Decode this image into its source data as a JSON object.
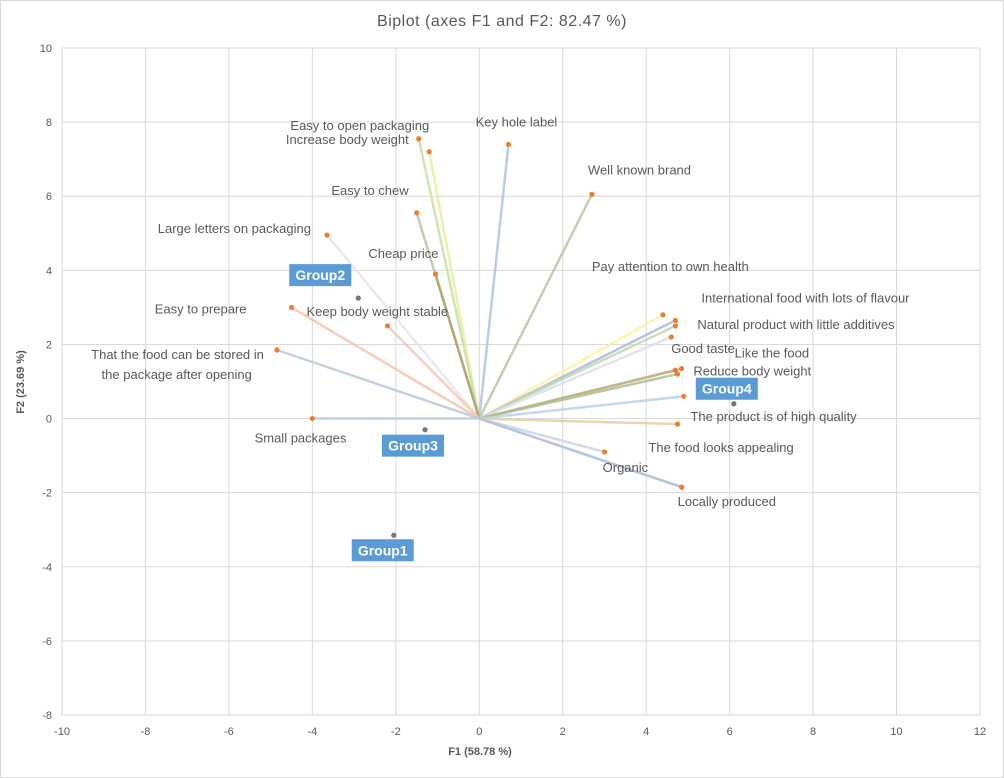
{
  "chart_data": {
    "type": "scatter",
    "title": "Biplot (axes F1 and F2: 82.47 %)",
    "xlabel": "F1 (58.78 %)",
    "ylabel": "F2 (23.69 %)",
    "xlim": [
      -10,
      12
    ],
    "ylim": [
      -8,
      10
    ],
    "xticks": [
      -10,
      -8,
      -6,
      -4,
      -2,
      0,
      2,
      4,
      6,
      8,
      10,
      12
    ],
    "yticks": [
      -8,
      -6,
      -4,
      -2,
      0,
      2,
      4,
      6,
      8,
      10
    ],
    "grid": true,
    "variables": [
      {
        "name": "Easy to open packaging",
        "x": -1.2,
        "y": 7.2,
        "color": "#e6ee9c"
      },
      {
        "name": "Increase body weight",
        "x": -1.45,
        "y": 7.55,
        "color": "#c5e1a5"
      },
      {
        "name": "Key hole label",
        "x": 0.7,
        "y": 7.4,
        "color": "#b0c4de"
      },
      {
        "name": "Well known brand",
        "x": 2.7,
        "y": 6.05,
        "color": "#b5c9a5"
      },
      {
        "name": "Easy to chew",
        "x": -1.5,
        "y": 5.55,
        "color": "#b8c4a0"
      },
      {
        "name": "Large letters on packaging",
        "x": -3.65,
        "y": 4.95,
        "color": "#e4e6ea"
      },
      {
        "name": "Cheap price",
        "x": -1.05,
        "y": 3.9,
        "color": "#b0a070"
      },
      {
        "name": "Easy to prepare",
        "x": -4.5,
        "y": 3.0,
        "color": "#f4c4a8"
      },
      {
        "name": "Keep body weight stable",
        "x": -2.2,
        "y": 2.5,
        "color": "#f0c8b0"
      },
      {
        "name": "That the food can be stored in the package after opening",
        "x": -4.85,
        "y": 1.85,
        "color": "#b8c8de"
      },
      {
        "name": "Small packages",
        "x": -4.0,
        "y": 0.0,
        "color": "#b8cce4"
      },
      {
        "name": "Pay attention to own health",
        "x": 4.4,
        "y": 2.8,
        "color": "#fff2a0"
      },
      {
        "name": "International food with lots of flavour",
        "x": 4.7,
        "y": 2.65,
        "color": "#a6bcd8"
      },
      {
        "name": "Natural product with little additives",
        "x": 4.7,
        "y": 2.5,
        "color": "#c5d6a8"
      },
      {
        "name": "Good taste",
        "x": 4.6,
        "y": 2.2,
        "color": "#d8e0ec"
      },
      {
        "name": "Like the food",
        "x": 4.85,
        "y": 1.35,
        "color": "#b4c0d6"
      },
      {
        "name": "Reduce body weight",
        "x": 4.7,
        "y": 1.3,
        "color": "#c8b070"
      },
      {
        "name": "",
        "x": 4.75,
        "y": 1.2,
        "color": "#a8c090"
      },
      {
        "name": "",
        "x": 4.9,
        "y": 0.6,
        "color": "#b8d0ec"
      },
      {
        "name": "The product is of high quality",
        "x": 4.75,
        "y": -0.15,
        "color": "#e0d0a0"
      },
      {
        "name": "The food looks appealing",
        "x": 3.0,
        "y": -0.9,
        "color": "#c8d4e4"
      },
      {
        "name": "Organic",
        "x": 4.85,
        "y": -1.85,
        "color": "#b4c4dc"
      },
      {
        "name": "Locally produced",
        "x": 4.85,
        "y": -1.85,
        "color": "#b4c4dc"
      }
    ],
    "groups": [
      {
        "name": "Group1",
        "x": -2.05,
        "y": -3.15
      },
      {
        "name": "Group2",
        "x": -2.9,
        "y": 3.25
      },
      {
        "name": "Group3",
        "x": -1.3,
        "y": -0.3
      },
      {
        "name": "Group4",
        "x": 6.1,
        "y": 0.4
      }
    ],
    "colors": {
      "point": "#ed7d31",
      "group_point": "#7f6f7f",
      "group_box": "#5b9bd5",
      "grid": "#d9d9d9",
      "text": "#595959"
    }
  }
}
